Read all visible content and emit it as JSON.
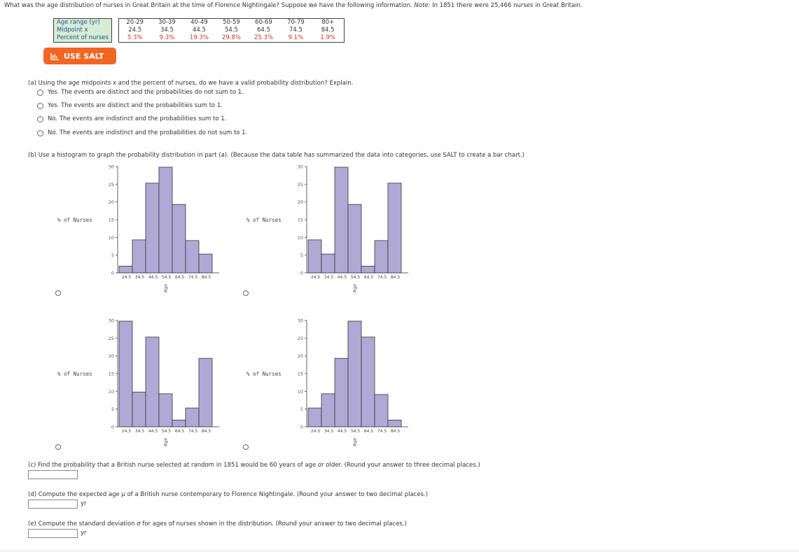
{
  "intro": {
    "question": "What was the age distribution of nurses in Great Britain at the time of Florence Nightingale? Suppose we have the following information.",
    "note_label": "Note:",
    "note_text": "In 1851 there were 25,466 nurses in Great Britain."
  },
  "table": {
    "row_labels": [
      "Age range (yr)",
      "Midpoint x",
      "Percent of nurses"
    ],
    "age_ranges": [
      "20-29",
      "30-39",
      "40-49",
      "50-59",
      "60-69",
      "70-79",
      "80+"
    ],
    "midpoints": [
      "24.5",
      "34.5",
      "44.5",
      "54.5",
      "64.5",
      "74.5",
      "84.5"
    ],
    "percents": [
      "5.3%",
      "9.3%",
      "19.3%",
      "29.8%",
      "25.3%",
      "9.1%",
      "1.9%"
    ]
  },
  "salt_button": {
    "label": "USE SALT",
    "color": "#f26522"
  },
  "part_a": {
    "question": "(a) Using the age midpoints x and the percent of nurses, do we have a valid probability distribution? Explain.",
    "options": [
      "Yes. The events are distinct and the probabilities do not sum to 1.",
      "Yes. The events are distinct and the probabilities sum to 1.",
      "No. The events are indistinct and the probabilities sum to 1.",
      "No. The events are indistinct and the probabilities do not sum to 1."
    ]
  },
  "part_b": {
    "question": "(b) Use a histogram to graph the probability distribution in part (a). (Because the data table has summarized the data into categories, use SALT to create a bar chart.)"
  },
  "chart_data": [
    {
      "type": "bar",
      "categories": [
        "24.5",
        "34.5",
        "44.5",
        "54.5",
        "64.5",
        "74.5",
        "84.5"
      ],
      "values": [
        1.9,
        9.3,
        25.3,
        29.8,
        19.3,
        9.1,
        5.3
      ],
      "xlabel": "Age",
      "ylabel": "% of Nurses",
      "ylim": [
        0,
        30
      ],
      "yticks": [
        0,
        5,
        10,
        15,
        20,
        25,
        30
      ],
      "bar_color": "#b0a9d6"
    },
    {
      "type": "bar",
      "categories": [
        "24.5",
        "34.5",
        "44.5",
        "54.5",
        "64.5",
        "74.5",
        "84.5"
      ],
      "values": [
        9.3,
        5.3,
        29.8,
        19.3,
        1.9,
        9.1,
        25.3
      ],
      "xlabel": "Age",
      "ylabel": "% of Nurses",
      "ylim": [
        0,
        30
      ],
      "yticks": [
        0,
        5,
        10,
        15,
        20,
        25,
        30
      ],
      "bar_color": "#b0a9d6"
    },
    {
      "type": "bar",
      "categories": [
        "24.5",
        "34.5",
        "44.5",
        "54.5",
        "64.5",
        "74.5",
        "84.5"
      ],
      "values": [
        29.8,
        9.8,
        25.3,
        9.3,
        1.9,
        5.3,
        19.3
      ],
      "xlabel": "Age",
      "ylabel": "% of Nurses",
      "ylim": [
        0,
        30
      ],
      "yticks": [
        0,
        5,
        10,
        15,
        20,
        25,
        30
      ],
      "bar_color": "#b0a9d6"
    },
    {
      "type": "bar",
      "categories": [
        "24.5",
        "34.5",
        "44.5",
        "54.5",
        "64.5",
        "74.5",
        "84.5"
      ],
      "values": [
        5.3,
        9.3,
        19.3,
        29.8,
        25.3,
        9.1,
        1.9
      ],
      "xlabel": "Age",
      "ylabel": "% of Nurses",
      "ylim": [
        0,
        30
      ],
      "yticks": [
        0,
        5,
        10,
        15,
        20,
        25,
        30
      ],
      "bar_color": "#b0a9d6"
    }
  ],
  "part_c": {
    "question": "(c) Find the probability that a British nurse selected at random in 1851 would be 60 years of age or older. (Round your answer to three decimal places.)",
    "value": ""
  },
  "part_d": {
    "question_pre": "(d) Compute the expected age",
    "symbol": "μ",
    "question_post": "of a British nurse contemporary to Florence Nightingale. (Round your answer to two decimal places.)",
    "unit": "yr",
    "value": ""
  },
  "part_e": {
    "question_pre": "(e) Compute the standard deviation",
    "symbol": "σ",
    "question_post": "for ages of nurses shown in the distribution. (Round your answer to two decimal places.)",
    "unit": "yr",
    "value": ""
  }
}
